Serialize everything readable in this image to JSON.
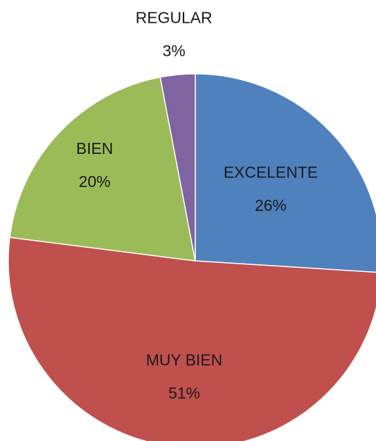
{
  "chart_data": {
    "type": "pie",
    "categories": [
      "EXCELENTE",
      "MUY BIEN",
      "BIEN",
      "REGULAR"
    ],
    "values": [
      26,
      51,
      20,
      3
    ],
    "value_labels": [
      "26%",
      "51%",
      "20%",
      "3%"
    ],
    "colors": [
      "#4f81bd",
      "#c0504d",
      "#9bbb59",
      "#8064a2"
    ]
  }
}
